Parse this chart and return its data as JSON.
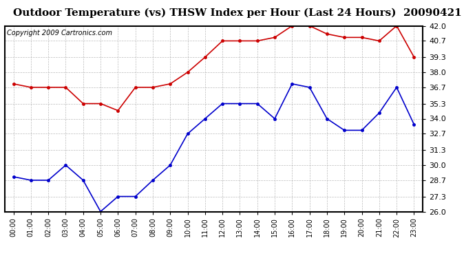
{
  "title": "Outdoor Temperature (vs) THSW Index per Hour (Last 24 Hours)  20090421",
  "copyright": "Copyright 2009 Cartronics.com",
  "hours": [
    "00:00",
    "01:00",
    "02:00",
    "03:00",
    "04:00",
    "05:00",
    "06:00",
    "07:00",
    "08:00",
    "09:00",
    "10:00",
    "11:00",
    "12:00",
    "13:00",
    "14:00",
    "15:00",
    "16:00",
    "17:00",
    "18:00",
    "19:00",
    "20:00",
    "21:00",
    "22:00",
    "23:00"
  ],
  "temp": [
    29.0,
    28.7,
    28.7,
    30.0,
    28.7,
    26.0,
    27.3,
    27.3,
    28.7,
    30.0,
    32.7,
    34.0,
    35.3,
    35.3,
    35.3,
    34.0,
    37.0,
    36.7,
    34.0,
    33.0,
    33.0,
    34.5,
    36.7,
    33.5
  ],
  "thsw": [
    37.0,
    36.7,
    36.7,
    36.7,
    35.3,
    35.3,
    34.7,
    36.7,
    36.7,
    37.0,
    38.0,
    39.3,
    40.7,
    40.7,
    40.7,
    41.0,
    42.0,
    42.0,
    41.3,
    41.0,
    41.0,
    40.7,
    42.0,
    39.3
  ],
  "temp_color": "#0000cc",
  "thsw_color": "#cc0000",
  "bg_color": "#ffffff",
  "grid_color": "#aaaaaa",
  "ylim": [
    26.0,
    42.0
  ],
  "yticks": [
    26.0,
    27.3,
    28.7,
    30.0,
    31.3,
    32.7,
    34.0,
    35.3,
    36.7,
    38.0,
    39.3,
    40.7,
    42.0
  ],
  "title_fontsize": 11,
  "copyright_fontsize": 7
}
